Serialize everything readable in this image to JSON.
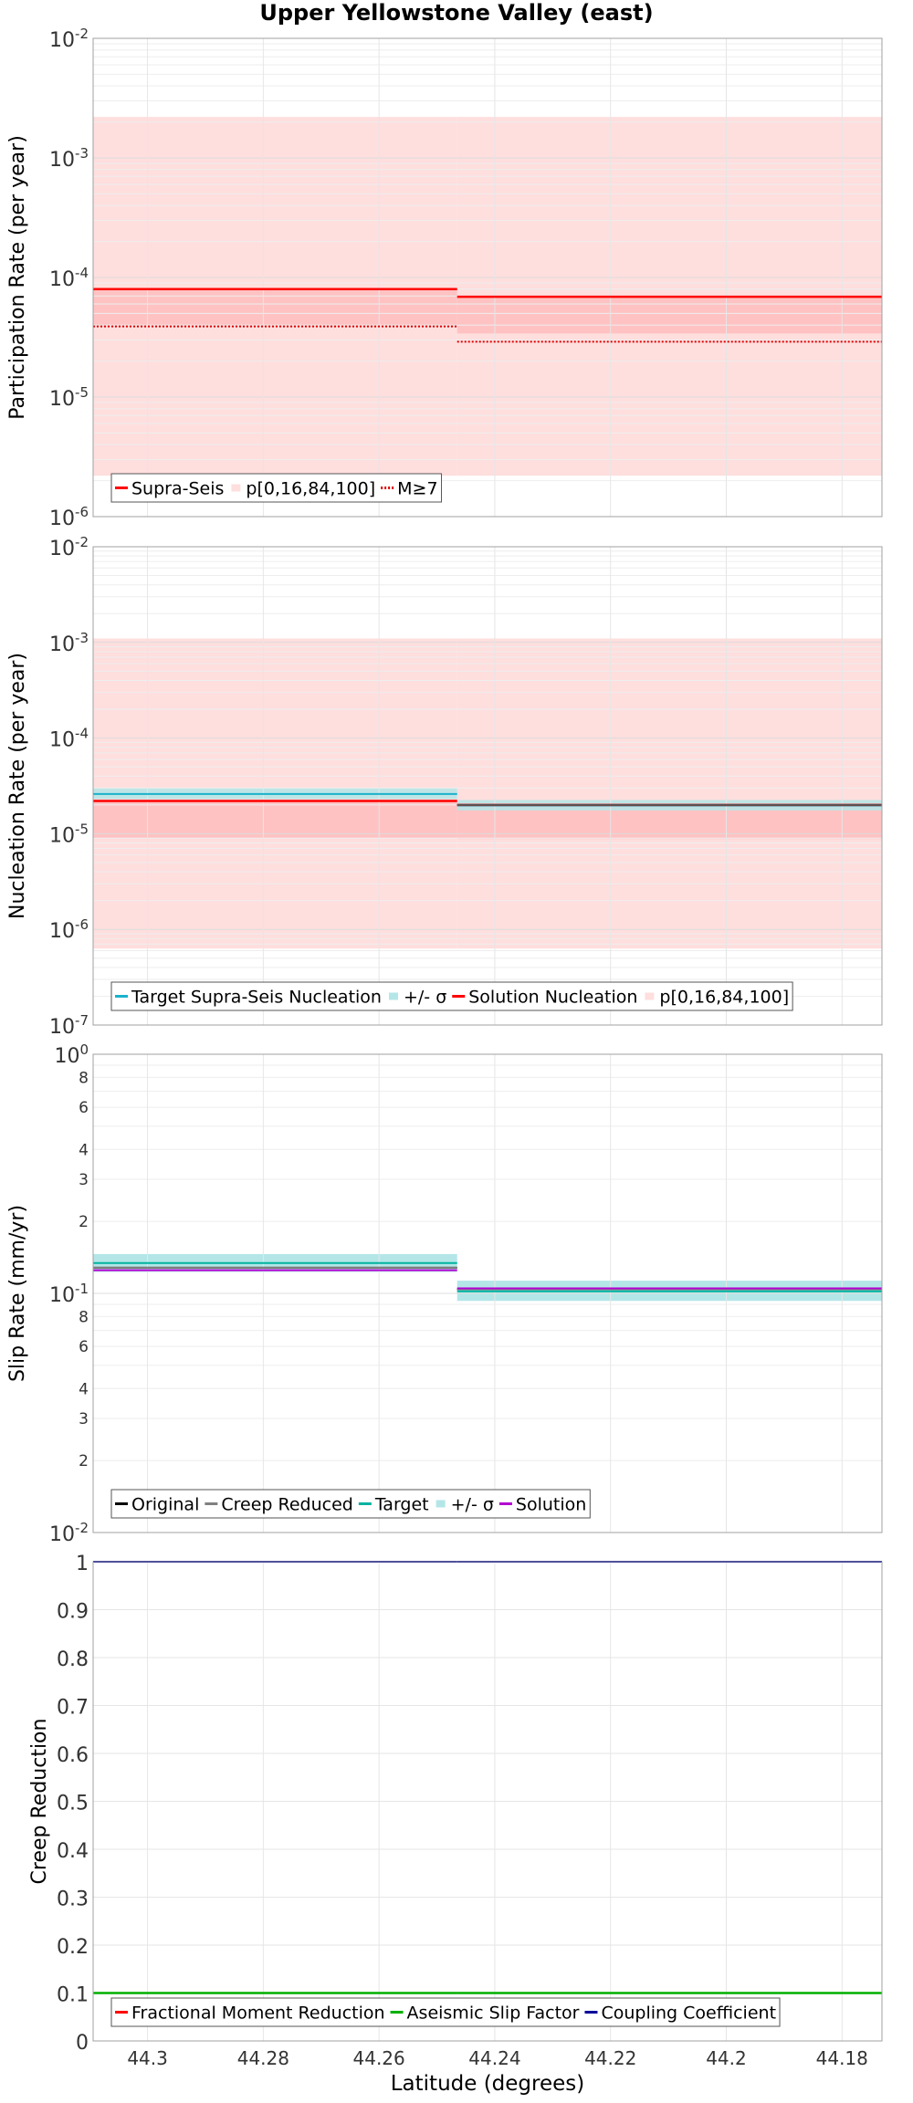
{
  "title": "Upper Yellowstone Valley (east)",
  "xlabel": "Latitude (degrees)",
  "colors": {
    "red": "#ff0000",
    "red_band": "#ffdede",
    "red_inner": "#ffc2c2",
    "cyan": "#1ab2cc",
    "cyan_band": "#b4e6e8",
    "teal": "#00b3a0",
    "purple": "#b400d2",
    "gray": "#808080",
    "black": "#000000",
    "green": "#00b000",
    "navy": "#000099"
  },
  "chart_data": [
    {
      "type": "line",
      "id": "participation",
      "title": "Upper Yellowstone Valley (east)",
      "xlabel": "Latitude (degrees)",
      "ylabel": "Participation Rate (per year)",
      "yscale": "log",
      "ylim": [
        1e-06,
        0.01
      ],
      "xlim": [
        44.3094,
        44.1731
      ],
      "x_ticks": [
        44.3,
        44.28,
        44.26,
        44.24,
        44.22,
        44.2,
        44.18
      ],
      "y_tick_labels": [
        {
          "v": 1e-06,
          "base": "10",
          "exp": "-6"
        },
        {
          "v": 1e-05,
          "base": "10",
          "exp": "-5"
        },
        {
          "v": 0.0001,
          "base": "10",
          "exp": "-4"
        },
        {
          "v": 0.001,
          "base": "10",
          "exp": "-3"
        },
        {
          "v": 0.01,
          "base": "10",
          "exp": "-2"
        }
      ],
      "sections": [
        {
          "x0": 44.3094,
          "x1": 44.2465
        },
        {
          "x0": 44.2465,
          "x1": 44.1731
        }
      ],
      "bands": [
        {
          "name": "p0-p100",
          "color": "#ffdede",
          "values": [
            [
              2.2e-06,
              0.0022
            ],
            [
              2.2e-06,
              0.0022
            ]
          ]
        },
        {
          "name": "p16-p84",
          "color": "#ffc2c2",
          "values": [
            [
              3.9e-05,
              8e-05
            ],
            [
              3.4e-05,
              6.9e-05
            ]
          ]
        }
      ],
      "series": [
        {
          "name": "Supra-Seis",
          "color": "#ff0000",
          "width": 2.5,
          "dash": "",
          "values": [
            8e-05,
            6.9e-05
          ]
        },
        {
          "name": "M≥7",
          "color": "#dd0000",
          "width": 2,
          "dash": "2,2",
          "values": [
            3.9e-05,
            2.9e-05
          ]
        }
      ],
      "legend": [
        {
          "label": "Supra-Seis",
          "kind": "line",
          "color": "#ff0000",
          "dash": ""
        },
        {
          "label": "p[0,16,84,100]",
          "kind": "box",
          "color": "#ffdede"
        },
        {
          "label": "M≥7",
          "kind": "line",
          "color": "#dd0000",
          "dash": "2,2"
        }
      ],
      "legend_position": "bottom-left"
    },
    {
      "type": "line",
      "id": "nucleation",
      "ylabel": "Nucleation Rate (per year)",
      "yscale": "log",
      "ylim": [
        1e-07,
        0.01
      ],
      "xlim": [
        44.3094,
        44.1731
      ],
      "x_ticks": [
        44.3,
        44.28,
        44.26,
        44.24,
        44.22,
        44.2,
        44.18
      ],
      "y_tick_labels": [
        {
          "v": 1e-07,
          "base": "10",
          "exp": "-7"
        },
        {
          "v": 1e-06,
          "base": "10",
          "exp": "-6"
        },
        {
          "v": 1e-05,
          "base": "10",
          "exp": "-5"
        },
        {
          "v": 0.0001,
          "base": "10",
          "exp": "-4"
        },
        {
          "v": 0.001,
          "base": "10",
          "exp": "-3"
        },
        {
          "v": 0.01,
          "base": "10",
          "exp": "-2"
        }
      ],
      "sections": [
        {
          "x0": 44.3094,
          "x1": 44.2465
        },
        {
          "x0": 44.2465,
          "x1": 44.1731
        }
      ],
      "bands": [
        {
          "name": "p0-p100",
          "color": "#ffdede",
          "values": [
            [
              6.3e-07,
              0.0011
            ],
            [
              6.3e-07,
              0.0011
            ]
          ]
        },
        {
          "name": "p16-p84",
          "color": "#ffc2c2",
          "values": [
            [
              9e-06,
              2.2e-05
            ],
            [
              8.8e-06,
              2e-05
            ]
          ]
        },
        {
          "name": "+/- σ",
          "color": "#b4e6e8",
          "opacity": 0.85,
          "values": [
            [
              2.3e-05,
              3e-05
            ],
            [
              1.75e-05,
              2.25e-05
            ]
          ]
        }
      ],
      "series": [
        {
          "name": "Target Supra-Seis Nucleation",
          "color": "#1ab2cc",
          "width": 2,
          "dash": "",
          "values": [
            2.6e-05,
            1.97e-05
          ]
        },
        {
          "name": "Solution Nucleation",
          "color": "#ff0000",
          "width": 2.5,
          "dash": "",
          "values": [
            2.2e-05,
            2e-05
          ]
        },
        {
          "name": "Solution Nucleation (overlay)",
          "color": "#555555",
          "width": 2,
          "dash": "",
          "values": [
            null,
            2e-05
          ]
        }
      ],
      "legend": [
        {
          "label": "Target Supra-Seis Nucleation",
          "kind": "line",
          "color": "#1ab2cc",
          "dash": ""
        },
        {
          "label": "+/- σ",
          "kind": "box",
          "color": "#b4e6e8"
        },
        {
          "label": "Solution Nucleation",
          "kind": "line",
          "color": "#ff0000",
          "dash": ""
        },
        {
          "label": "p[0,16,84,100]",
          "kind": "box",
          "color": "#ffdede"
        }
      ],
      "legend_position": "bottom-left"
    },
    {
      "type": "line",
      "id": "sliprate",
      "ylabel": "Slip Rate (mm/yr)",
      "yscale": "log",
      "ylim": [
        0.01,
        1
      ],
      "xlim": [
        44.3094,
        44.1731
      ],
      "x_ticks": [
        44.3,
        44.28,
        44.26,
        44.24,
        44.22,
        44.2,
        44.18
      ],
      "y_tick_labels": [
        {
          "v": 0.01,
          "base": "10",
          "exp": "-2"
        },
        {
          "v": 0.02,
          "base": "2",
          "exp": ""
        },
        {
          "v": 0.03,
          "base": "3",
          "exp": ""
        },
        {
          "v": 0.04,
          "base": "4",
          "exp": ""
        },
        {
          "v": 0.06,
          "base": "6",
          "exp": ""
        },
        {
          "v": 0.08,
          "base": "8",
          "exp": ""
        },
        {
          "v": 0.1,
          "base": "10",
          "exp": "-1"
        },
        {
          "v": 0.2,
          "base": "2",
          "exp": ""
        },
        {
          "v": 0.3,
          "base": "3",
          "exp": ""
        },
        {
          "v": 0.4,
          "base": "4",
          "exp": ""
        },
        {
          "v": 0.6,
          "base": "6",
          "exp": ""
        },
        {
          "v": 0.8,
          "base": "8",
          "exp": ""
        },
        {
          "v": 1,
          "base": "10",
          "exp": "0"
        }
      ],
      "sections": [
        {
          "x0": 44.3094,
          "x1": 44.2465
        },
        {
          "x0": 44.2465,
          "x1": 44.1731
        }
      ],
      "bands": [
        {
          "name": "+/- σ",
          "color": "#b4e6e8",
          "values": [
            [
              0.123,
              0.146
            ],
            [
              0.093,
              0.113
            ]
          ]
        }
      ],
      "series": [
        {
          "name": "Original",
          "color": "#000000",
          "width": 2,
          "dash": "",
          "values": [
            0.128,
            0.104
          ]
        },
        {
          "name": "Creep Reduced",
          "color": "#808080",
          "width": 2,
          "dash": "",
          "values": [
            0.128,
            0.104
          ]
        },
        {
          "name": "Target",
          "color": "#00b3a0",
          "width": 2,
          "dash": "",
          "values": [
            0.134,
            0.102
          ]
        },
        {
          "name": "Solution",
          "color": "#b400d2",
          "width": 2,
          "dash": "",
          "values": [
            0.125,
            0.105
          ]
        }
      ],
      "legend": [
        {
          "label": "Original",
          "kind": "line",
          "color": "#000000",
          "dash": ""
        },
        {
          "label": "Creep Reduced",
          "kind": "line",
          "color": "#808080",
          "dash": ""
        },
        {
          "label": "Target",
          "kind": "line",
          "color": "#00b3a0",
          "dash": ""
        },
        {
          "label": "+/- σ",
          "kind": "box",
          "color": "#b4e6e8"
        },
        {
          "label": "Solution",
          "kind": "line",
          "color": "#b400d2",
          "dash": ""
        }
      ],
      "legend_position": "bottom-left"
    },
    {
      "type": "line",
      "id": "creep",
      "ylabel": "Creep Reduction",
      "yscale": "linear",
      "ylim": [
        0,
        1
      ],
      "xlim": [
        44.3094,
        44.1731
      ],
      "x_ticks": [
        44.3,
        44.28,
        44.26,
        44.24,
        44.22,
        44.2,
        44.18
      ],
      "y_tick_labels": [
        {
          "v": 0,
          "base": "0",
          "exp": ""
        },
        {
          "v": 0.1,
          "base": "0.1",
          "exp": ""
        },
        {
          "v": 0.2,
          "base": "0.2",
          "exp": ""
        },
        {
          "v": 0.3,
          "base": "0.3",
          "exp": ""
        },
        {
          "v": 0.4,
          "base": "0.4",
          "exp": ""
        },
        {
          "v": 0.5,
          "base": "0.5",
          "exp": ""
        },
        {
          "v": 0.6,
          "base": "0.6",
          "exp": ""
        },
        {
          "v": 0.7,
          "base": "0.7",
          "exp": ""
        },
        {
          "v": 0.8,
          "base": "0.8",
          "exp": ""
        },
        {
          "v": 0.9,
          "base": "0.9",
          "exp": ""
        },
        {
          "v": 1,
          "base": "1",
          "exp": ""
        }
      ],
      "sections": [
        {
          "x0": 44.3094,
          "x1": 44.2465
        },
        {
          "x0": 44.2465,
          "x1": 44.1731
        }
      ],
      "bands": [],
      "series": [
        {
          "name": "Fractional Moment Reduction",
          "color": "#ff0000",
          "width": 2,
          "dash": "",
          "values": [
            0.1,
            0.1
          ]
        },
        {
          "name": "Aseismic Slip Factor",
          "color": "#00b000",
          "width": 2.5,
          "dash": "",
          "values": [
            0.1,
            0.1
          ]
        },
        {
          "name": "Coupling Coefficient",
          "color": "#000099",
          "width": 2,
          "dash": "",
          "values": [
            1,
            1
          ]
        }
      ],
      "legend": [
        {
          "label": "Fractional Moment Reduction",
          "kind": "line",
          "color": "#ff0000",
          "dash": ""
        },
        {
          "label": "Aseismic Slip Factor",
          "kind": "line",
          "color": "#00b000",
          "dash": ""
        },
        {
          "label": "Coupling Coefficient",
          "kind": "line",
          "color": "#000099",
          "dash": ""
        }
      ],
      "legend_position": "bottom-left"
    }
  ]
}
